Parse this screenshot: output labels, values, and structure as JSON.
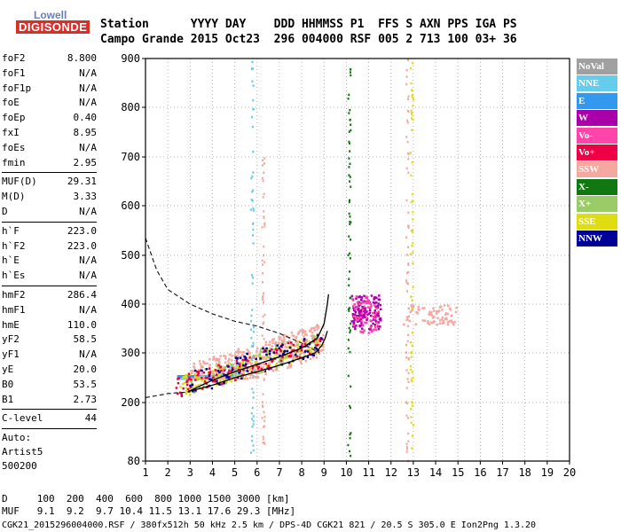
{
  "logo": {
    "top": "Lowell",
    "main": "DIGISONDE"
  },
  "header": {
    "line1": "Station      YYYY DAY    DDD HHMMSS P1  FFS S AXN PPS IGA PS",
    "line2": "Campo Grande 2015 Oct23  296 004000 RSF 005 2 713 100 03+ 36"
  },
  "params": {
    "group1": [
      {
        "name": "foF2",
        "value": "8.800"
      },
      {
        "name": "foF1",
        "value": "N/A"
      },
      {
        "name": "foF1p",
        "value": "N/A"
      },
      {
        "name": "foE",
        "value": "N/A"
      },
      {
        "name": "foEp",
        "value": "0.40"
      },
      {
        "name": "fxI",
        "value": "8.95"
      },
      {
        "name": "foEs",
        "value": "N/A"
      },
      {
        "name": "fmin",
        "value": "2.95"
      }
    ],
    "group2": [
      {
        "name": "MUF(D)",
        "value": "29.31"
      },
      {
        "name": "M(D)",
        "value": "3.33"
      },
      {
        "name": "D",
        "value": "N/A"
      }
    ],
    "group3": [
      {
        "name": "h`F",
        "value": "223.0"
      },
      {
        "name": "h`F2",
        "value": "223.0"
      },
      {
        "name": "h`E",
        "value": "N/A"
      },
      {
        "name": "h`Es",
        "value": "N/A"
      }
    ],
    "group4": [
      {
        "name": "hmF2",
        "value": "286.4"
      },
      {
        "name": "hmF1",
        "value": "N/A"
      },
      {
        "name": "hmE",
        "value": "110.0"
      },
      {
        "name": "yF2",
        "value": "58.5"
      },
      {
        "name": "yF1",
        "value": "N/A"
      },
      {
        "name": "yE",
        "value": "20.0"
      },
      {
        "name": "B0",
        "value": "53.5"
      },
      {
        "name": "B1",
        "value": "2.73"
      }
    ],
    "group5": [
      {
        "name": "C-level",
        "value": "44"
      }
    ],
    "auto": [
      "Auto:",
      "Artist5",
      "500200"
    ]
  },
  "legend": [
    {
      "label": "NoVal",
      "color": "#a0a0a0"
    },
    {
      "label": "NNE",
      "color": "#66ccee"
    },
    {
      "label": "E",
      "color": "#3399ee"
    },
    {
      "label": "W",
      "color": "#aa00aa"
    },
    {
      "label": "Vo-",
      "color": "#ff44aa"
    },
    {
      "label": "Vo+",
      "color": "#ee0044"
    },
    {
      "label": "SSW",
      "color": "#f5a8a0"
    },
    {
      "label": "X-",
      "color": "#117711"
    },
    {
      "label": "X+",
      "color": "#99cc66"
    },
    {
      "label": "SSE",
      "color": "#dddd11"
    },
    {
      "label": "NNW",
      "color": "#000099"
    }
  ],
  "footer": {
    "line1": "D     100  200  400  600  800 1000 1500 3000 [km]",
    "line2": "MUF   9.1  9.2  9.7 10.4 11.5 13.1 17.6 29.3 [MHz]",
    "line3": "CGK21_2015296004000.RSF / 380fx512h 50 kHz 2.5 km / DPS-4D CGK21 821 / 20.5 S 305.0 E Ion2Png 1.3.20"
  },
  "chart_data": {
    "type": "scatter",
    "title": "",
    "xlabel": "",
    "ylabel": "",
    "xlim": [
      1,
      20
    ],
    "ylim": [
      80,
      900
    ],
    "x_ticks": [
      1,
      2,
      3,
      4,
      5,
      6,
      7,
      8,
      9,
      10,
      11,
      12,
      13,
      14,
      15,
      16,
      17,
      18,
      19,
      20
    ],
    "y_ticks": [
      80,
      200,
      300,
      400,
      500,
      600,
      700,
      800,
      900
    ],
    "grid": "dotted",
    "clusters": [
      {
        "name": "E",
        "color": "#3399ee",
        "x": [
          2.4,
          5.0
        ],
        "y": [
          255,
          285
        ],
        "n": 150
      },
      {
        "name": "NNE",
        "color": "#66ccee",
        "x": [
          2.5,
          5.5
        ],
        "y": [
          250,
          300
        ],
        "n": 100
      },
      {
        "name": "SSW",
        "color": "#f5a8a0",
        "x": [
          3.0,
          9.0
        ],
        "y": [
          250,
          390
        ],
        "n": 380
      },
      {
        "name": "SSE",
        "color": "#dddd11",
        "x": [
          2.5,
          8.8
        ],
        "y": [
          215,
          300
        ],
        "n": 170
      },
      {
        "name": "X+",
        "color": "#99cc66",
        "x": [
          3.0,
          8.8
        ],
        "y": [
          220,
          320
        ],
        "n": 100
      },
      {
        "name": "Vo+",
        "color": "#ee0044",
        "x": [
          2.3,
          9.0
        ],
        "y": [
          215,
          300
        ],
        "n": 140
      },
      {
        "name": "NNW",
        "color": "#000099",
        "x": [
          2.8,
          9.0
        ],
        "y": [
          220,
          320
        ],
        "n": 80
      },
      {
        "name": "W",
        "color": "#aa00aa",
        "x": [
          10.2,
          11.5
        ],
        "y": [
          350,
          420
        ],
        "n": 140
      },
      {
        "name": "Vo-",
        "color": "#ff44aa",
        "x": [
          10.2,
          11.4
        ],
        "y": [
          340,
          420
        ],
        "n": 60
      },
      {
        "name": "SSW",
        "color": "#f5a8a0",
        "x": [
          12.5,
          14.9
        ],
        "y": [
          360,
          400
        ],
        "n": 80
      }
    ],
    "vertical_streaks": [
      {
        "x": 5.75,
        "y": [
          90,
          900
        ],
        "color": "#66ccee"
      },
      {
        "x": 6.25,
        "y": [
          90,
          700
        ],
        "color": "#f5a8a0"
      },
      {
        "x": 10.1,
        "y": [
          80,
          900
        ],
        "color": "#117711"
      },
      {
        "x": 12.7,
        "y": [
          80,
          900
        ],
        "color": "#f5a8a0"
      },
      {
        "x": 12.9,
        "y": [
          90,
          900
        ],
        "color": "#dddd11"
      }
    ],
    "profile_solid": [
      [
        2.9,
        222
      ],
      [
        4,
        235
      ],
      [
        5,
        250
      ],
      [
        6,
        262
      ],
      [
        7,
        275
      ],
      [
        8,
        290
      ],
      [
        8.6,
        300
      ],
      [
        8.9,
        315
      ],
      [
        9.05,
        330
      ],
      [
        9.15,
        345
      ]
    ],
    "profile_solid_upper": [
      [
        2.9,
        222
      ],
      [
        4,
        245
      ],
      [
        5,
        262
      ],
      [
        6,
        277
      ],
      [
        7,
        292
      ],
      [
        8,
        310
      ],
      [
        8.7,
        330
      ],
      [
        9.0,
        360
      ],
      [
        9.15,
        400
      ],
      [
        9.2,
        420
      ]
    ],
    "profile_dashed_upper": [
      [
        1,
        535
      ],
      [
        1.5,
        470
      ],
      [
        2,
        430
      ],
      [
        3,
        400
      ],
      [
        4,
        380
      ],
      [
        5,
        365
      ],
      [
        6,
        355
      ],
      [
        7,
        340
      ],
      [
        8,
        320
      ],
      [
        8.8,
        300
      ]
    ],
    "profile_dashed_lower": [
      [
        1,
        210
      ],
      [
        1.5,
        214
      ],
      [
        2,
        218
      ],
      [
        2.5,
        220
      ],
      [
        3,
        221
      ]
    ]
  }
}
